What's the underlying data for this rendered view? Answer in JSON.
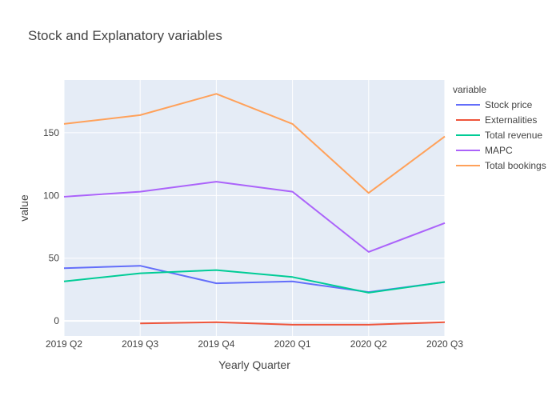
{
  "chart_data": {
    "type": "line",
    "title": "Stock and Explanatory variables",
    "xlabel": "Yearly Quarter",
    "ylabel": "value",
    "categories": [
      "2019 Q2",
      "2019 Q3",
      "2019 Q4",
      "2020 Q1",
      "2020 Q2",
      "2020 Q3"
    ],
    "ylim": [
      -12,
      192
    ],
    "yticks": [
      0,
      50,
      100,
      150
    ],
    "grid": true,
    "legend_title": "variable",
    "legend_position": "right",
    "series": [
      {
        "name": "Stock price",
        "color": "#636efa",
        "values": [
          42,
          44,
          30,
          31.5,
          23,
          31
        ]
      },
      {
        "name": "Externalities",
        "color": "#ef553b",
        "values": [
          null,
          -2,
          -1,
          -3,
          -3,
          -1
        ]
      },
      {
        "name": "Total revenue",
        "color": "#00cc96",
        "values": [
          31.5,
          38,
          40.5,
          35,
          22.5,
          31
        ]
      },
      {
        "name": "MAPC",
        "color": "#ab63fa",
        "values": [
          99,
          103,
          111,
          103,
          55,
          78
        ]
      },
      {
        "name": "Total bookings",
        "color": "#ffa15a",
        "values": [
          157,
          164,
          181,
          157,
          102,
          147
        ]
      }
    ]
  }
}
